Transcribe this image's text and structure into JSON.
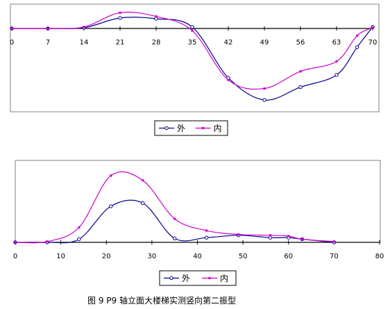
{
  "caption": "图 9   P9 轴立面大楼梯实测竖向第二振型",
  "colors": {
    "outer": "#00008B",
    "inner": "#CC00CC",
    "axis": "#000000",
    "frame": "#808080"
  },
  "chart_data": [
    {
      "type": "line",
      "xticks": [
        0,
        7,
        14,
        21,
        28,
        35,
        42,
        49,
        56,
        63,
        70
      ],
      "xlim": [
        0,
        70
      ],
      "ylim": [
        -1.0,
        0.25
      ],
      "grid": false,
      "legend": "bottom-center",
      "series": [
        {
          "name": "外",
          "x": [
            0,
            7,
            14,
            21,
            28,
            35,
            42,
            49,
            56,
            63,
            67,
            70
          ],
          "y": [
            0,
            0,
            0.01,
            0.14,
            0.13,
            0.02,
            -0.69,
            -1.0,
            -0.82,
            -0.65,
            -0.26,
            0.02
          ]
        },
        {
          "name": "内",
          "x": [
            0,
            7,
            14,
            21,
            28,
            35,
            42,
            49,
            56,
            63,
            67,
            70
          ],
          "y": [
            0,
            0,
            0.02,
            0.21,
            0.16,
            -0.03,
            -0.72,
            -0.84,
            -0.6,
            -0.46,
            -0.1,
            0.01
          ]
        }
      ]
    },
    {
      "type": "line",
      "xticks": [
        0,
        10,
        20,
        30,
        40,
        50,
        60,
        70,
        80
      ],
      "xlim": [
        0,
        80
      ],
      "ylim": [
        -0.05,
        1.0
      ],
      "grid": false,
      "legend": "bottom-center",
      "series": [
        {
          "name": "外",
          "x": [
            0,
            7,
            14,
            21,
            28,
            35,
            42,
            49,
            56,
            60,
            63,
            70
          ],
          "y": [
            0,
            0,
            0.04,
            0.46,
            0.5,
            0.05,
            0.06,
            0.09,
            0.06,
            0.06,
            0.04,
            0
          ]
        },
        {
          "name": "内",
          "x": [
            0,
            7,
            14,
            21,
            28,
            35,
            42,
            49,
            56,
            60,
            63,
            70
          ],
          "y": [
            0,
            0.01,
            0.19,
            0.85,
            0.79,
            0.3,
            0.15,
            0.1,
            0.09,
            0.08,
            0.04,
            0.01
          ]
        }
      ]
    }
  ]
}
